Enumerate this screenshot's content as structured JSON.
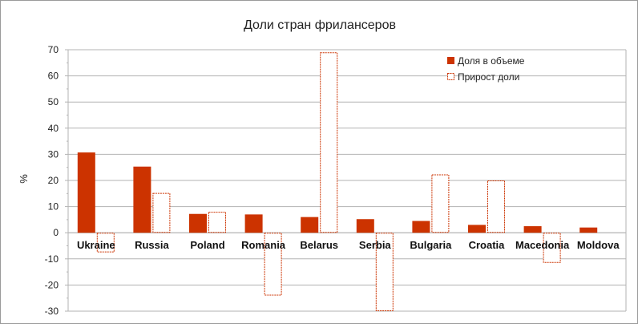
{
  "chart_data": {
    "type": "bar",
    "title": "Доли стран фрилансеров",
    "xlabel": "",
    "ylabel": "%",
    "ylim": [
      -30,
      70
    ],
    "yticks": [
      70,
      60,
      50,
      40,
      30,
      20,
      10,
      0,
      -10,
      -20,
      -30
    ],
    "grid": true,
    "legend_position": "top-right",
    "categories": [
      "Ukraine",
      "Russia",
      "Poland",
      "Romania",
      "Belarus",
      "Serbia",
      "Bulgaria",
      "Croatia",
      "Macedonia",
      "Moldova"
    ],
    "series": [
      {
        "name": "Доля в объеме",
        "values": [
          30.7,
          25.3,
          7.2,
          7.0,
          6.0,
          5.2,
          4.5,
          3.0,
          2.5,
          2.0
        ],
        "style": "solid",
        "color": "#cc3300"
      },
      {
        "name": "Прирост доли",
        "values": [
          -7.5,
          15.2,
          8.0,
          -24.0,
          69.0,
          -30.0,
          22.3,
          20.0,
          -11.5,
          0
        ],
        "style": "dashed-outline",
        "color": "#cc3300"
      }
    ]
  }
}
